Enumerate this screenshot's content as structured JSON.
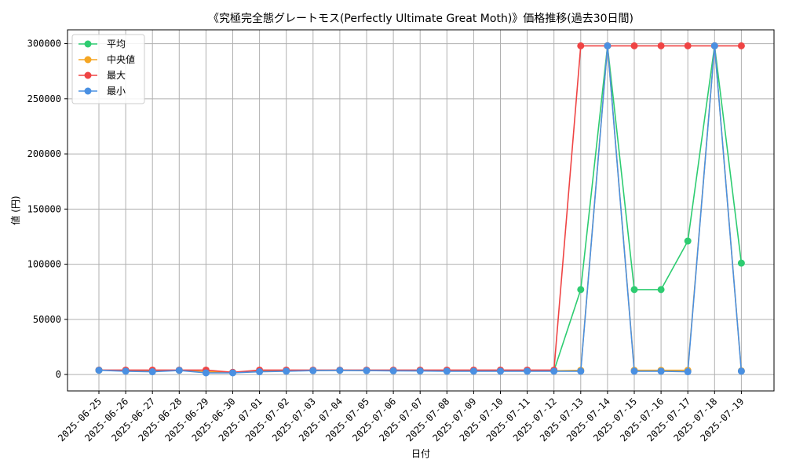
{
  "chart_data": {
    "type": "line",
    "title": "《究極完全態グレートモス(Perfectly Ultimate Great Moth)》価格推移(過去30日間)",
    "xlabel": "日付",
    "ylabel": "値 (円)",
    "ylim": [
      -14900,
      312500
    ],
    "yticks": [
      0,
      50000,
      100000,
      150000,
      200000,
      250000,
      300000
    ],
    "ytick_labels": [
      "0",
      "50000",
      "100000",
      "150000",
      "200000",
      "250000",
      "300000"
    ],
    "grid": true,
    "legend_position": "top-left",
    "categories": [
      "2025-06-25",
      "2025-06-26",
      "2025-06-27",
      "2025-06-28",
      "2025-06-29",
      "2025-06-30",
      "2025-07-01",
      "2025-07-02",
      "2025-07-03",
      "2025-07-04",
      "2025-07-05",
      "2025-07-06",
      "2025-07-07",
      "2025-07-08",
      "2025-07-09",
      "2025-07-10",
      "2025-07-11",
      "2025-07-12",
      "2025-07-13",
      "2025-07-14",
      "2025-07-15",
      "2025-07-16",
      "2025-07-17",
      "2025-07-18",
      "2025-07-19"
    ],
    "series": [
      {
        "name": "平均",
        "color": "#2ecc71",
        "values": [
          3900,
          3500,
          3200,
          3800,
          2500,
          1800,
          3000,
          3300,
          3700,
          3800,
          3700,
          3600,
          3600,
          3500,
          3500,
          3400,
          3400,
          3400,
          77000,
          298000,
          77000,
          77000,
          121000,
          298000,
          101000
        ]
      },
      {
        "name": "中央値",
        "color": "#f5a623",
        "values": [
          3900,
          3500,
          3200,
          3800,
          2500,
          1800,
          3000,
          3300,
          3700,
          3800,
          3700,
          3600,
          3600,
          3500,
          3500,
          3400,
          3400,
          3400,
          3800,
          298000,
          3800,
          3800,
          3800,
          298000,
          3300
        ]
      },
      {
        "name": "最大",
        "color": "#ef4444",
        "values": [
          4000,
          4000,
          4000,
          4000,
          4000,
          2000,
          4000,
          4000,
          4000,
          4000,
          4000,
          4000,
          4000,
          4000,
          4000,
          4000,
          4000,
          4000,
          298000,
          298000,
          298000,
          298000,
          298000,
          298000,
          298000
        ]
      },
      {
        "name": "最小",
        "color": "#4a90e2",
        "values": [
          3800,
          3000,
          2500,
          3700,
          1500,
          1500,
          2500,
          3000,
          3500,
          3700,
          3500,
          3300,
          3200,
          3000,
          3000,
          3000,
          3000,
          3000,
          3000,
          298000,
          3000,
          3000,
          2500,
          298000,
          3000
        ]
      }
    ]
  }
}
